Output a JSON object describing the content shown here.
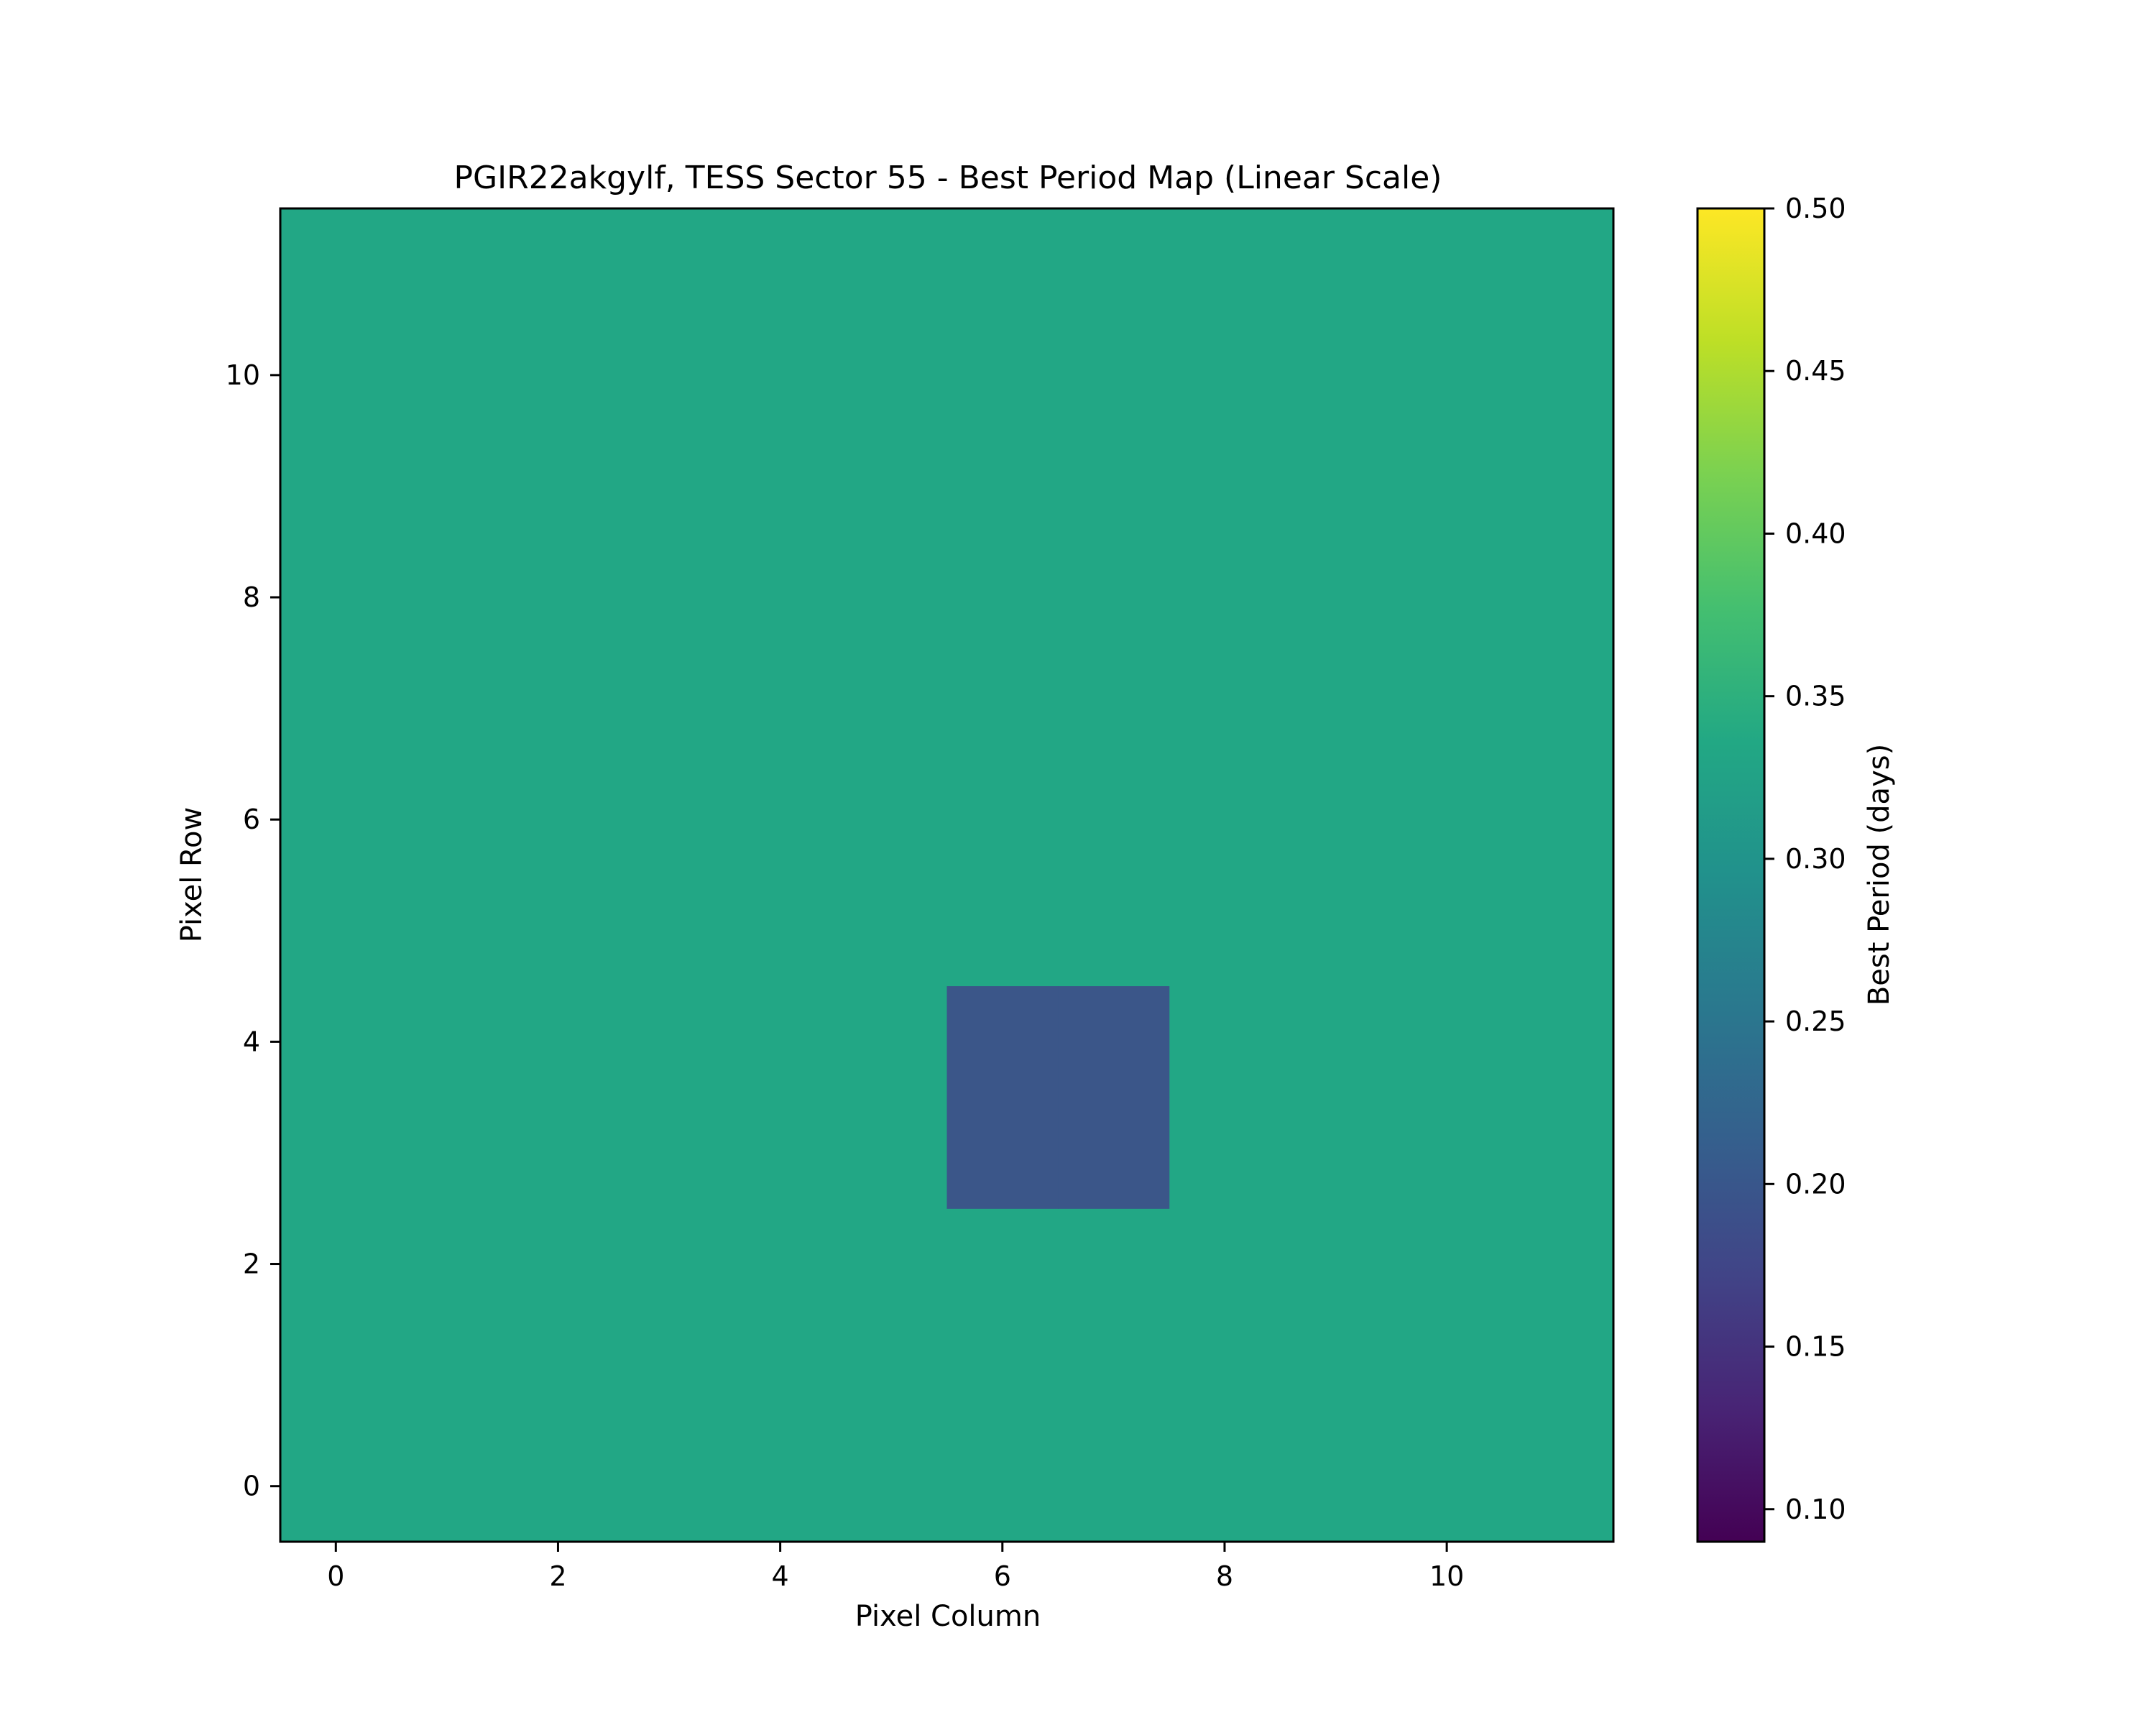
{
  "chart_data": {
    "type": "heatmap",
    "title": "PGIR22akgylf, TESS Sector 55 - Best Period Map (Linear Scale)",
    "xlabel": "Pixel Column",
    "ylabel": "Pixel Row",
    "xlim": [
      -0.5,
      11.5
    ],
    "ylim": [
      -0.5,
      11.5
    ],
    "x_ticks": [
      0,
      2,
      4,
      6,
      8,
      10
    ],
    "y_ticks": [
      0,
      2,
      4,
      6,
      8,
      10
    ],
    "grid": false,
    "colormap": "viridis",
    "background_value": 0.33,
    "background_color": "#22a785",
    "cells": [
      {
        "x": 6,
        "y": 3,
        "value": 0.2,
        "color": "#3b5689"
      },
      {
        "x": 6,
        "y": 4,
        "value": 0.2,
        "color": "#3b5689"
      },
      {
        "x": 7,
        "y": 3,
        "value": 0.2,
        "color": "#3b5689"
      },
      {
        "x": 7,
        "y": 4,
        "value": 0.2,
        "color": "#3b5689"
      }
    ],
    "colorbar": {
      "label": "Best Period (days)",
      "vmin": 0.09,
      "vmax": 0.5,
      "ticks": [
        "0.10",
        "0.15",
        "0.20",
        "0.25",
        "0.30",
        "0.35",
        "0.40",
        "0.45",
        "0.50"
      ]
    }
  }
}
